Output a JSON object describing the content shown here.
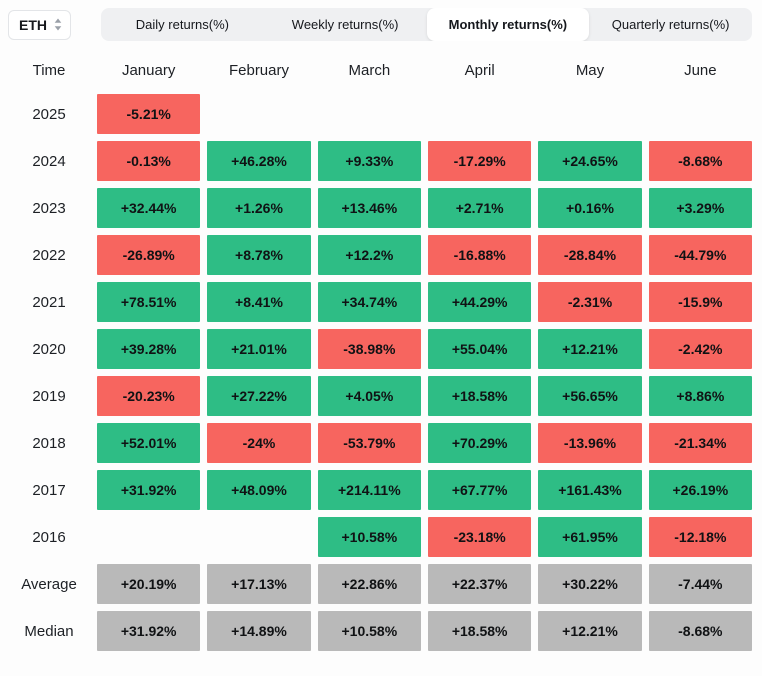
{
  "header": {
    "symbol": "ETH",
    "tabs": [
      {
        "label": "Daily returns(%)",
        "active": false
      },
      {
        "label": "Weekly returns(%)",
        "active": false
      },
      {
        "label": "Monthly returns(%)",
        "active": true
      },
      {
        "label": "Quarterly returns(%)",
        "active": false
      }
    ]
  },
  "table": {
    "corner_label": "Time",
    "columns": [
      "January",
      "February",
      "March",
      "April",
      "May",
      "June"
    ],
    "rows": [
      {
        "label": "2025",
        "type": "year",
        "cells": [
          "-5.21%",
          "",
          "",
          "",
          "",
          ""
        ]
      },
      {
        "label": "2024",
        "type": "year",
        "cells": [
          "-0.13%",
          "+46.28%",
          "+9.33%",
          "-17.29%",
          "+24.65%",
          "-8.68%"
        ]
      },
      {
        "label": "2023",
        "type": "year",
        "cells": [
          "+32.44%",
          "+1.26%",
          "+13.46%",
          "+2.71%",
          "+0.16%",
          "+3.29%"
        ]
      },
      {
        "label": "2022",
        "type": "year",
        "cells": [
          "-26.89%",
          "+8.78%",
          "+12.2%",
          "-16.88%",
          "-28.84%",
          "-44.79%"
        ]
      },
      {
        "label": "2021",
        "type": "year",
        "cells": [
          "+78.51%",
          "+8.41%",
          "+34.74%",
          "+44.29%",
          "-2.31%",
          "-15.9%"
        ]
      },
      {
        "label": "2020",
        "type": "year",
        "cells": [
          "+39.28%",
          "+21.01%",
          "-38.98%",
          "+55.04%",
          "+12.21%",
          "-2.42%"
        ]
      },
      {
        "label": "2019",
        "type": "year",
        "cells": [
          "-20.23%",
          "+27.22%",
          "+4.05%",
          "+18.58%",
          "+56.65%",
          "+8.86%"
        ]
      },
      {
        "label": "2018",
        "type": "year",
        "cells": [
          "+52.01%",
          "-24%",
          "-53.79%",
          "+70.29%",
          "-13.96%",
          "-21.34%"
        ]
      },
      {
        "label": "2017",
        "type": "year",
        "cells": [
          "+31.92%",
          "+48.09%",
          "+214.11%",
          "+67.77%",
          "+161.43%",
          "+26.19%"
        ]
      },
      {
        "label": "2016",
        "type": "year",
        "cells": [
          "",
          "",
          "+10.58%",
          "-23.18%",
          "+61.95%",
          "-12.18%"
        ]
      },
      {
        "label": "Average",
        "type": "summary",
        "cells": [
          "+20.19%",
          "+17.13%",
          "+22.86%",
          "+22.37%",
          "+30.22%",
          "-7.44%"
        ]
      },
      {
        "label": "Median",
        "type": "summary",
        "cells": [
          "+31.92%",
          "+14.89%",
          "+10.58%",
          "+18.58%",
          "+12.21%",
          "-8.68%"
        ]
      }
    ]
  },
  "colors": {
    "positive": "#2ebd85",
    "negative": "#f7655f",
    "neutral": "#b9b9b9"
  },
  "chart_data": {
    "type": "heatmap",
    "title": "ETH Monthly returns(%)",
    "columns": [
      "January",
      "February",
      "March",
      "April",
      "May",
      "June"
    ],
    "rows": [
      "2025",
      "2024",
      "2023",
      "2022",
      "2021",
      "2020",
      "2019",
      "2018",
      "2017",
      "2016",
      "Average",
      "Median"
    ],
    "values": [
      [
        -5.21,
        null,
        null,
        null,
        null,
        null
      ],
      [
        -0.13,
        46.28,
        9.33,
        -17.29,
        24.65,
        -8.68
      ],
      [
        32.44,
        1.26,
        13.46,
        2.71,
        0.16,
        3.29
      ],
      [
        -26.89,
        8.78,
        12.2,
        -16.88,
        -28.84,
        -44.79
      ],
      [
        78.51,
        8.41,
        34.74,
        44.29,
        -2.31,
        -15.9
      ],
      [
        39.28,
        21.01,
        -38.98,
        55.04,
        12.21,
        -2.42
      ],
      [
        -20.23,
        27.22,
        4.05,
        18.58,
        56.65,
        8.86
      ],
      [
        52.01,
        -24,
        -53.79,
        70.29,
        -13.96,
        -21.34
      ],
      [
        31.92,
        48.09,
        214.11,
        67.77,
        161.43,
        26.19
      ],
      [
        null,
        null,
        10.58,
        -23.18,
        61.95,
        -12.18
      ],
      [
        20.19,
        17.13,
        22.86,
        22.37,
        30.22,
        -7.44
      ],
      [
        31.92,
        14.89,
        10.58,
        18.58,
        12.21,
        -8.68
      ]
    ],
    "legend": "green = positive return, red = negative return, gray = summary rows",
    "unit": "%"
  }
}
